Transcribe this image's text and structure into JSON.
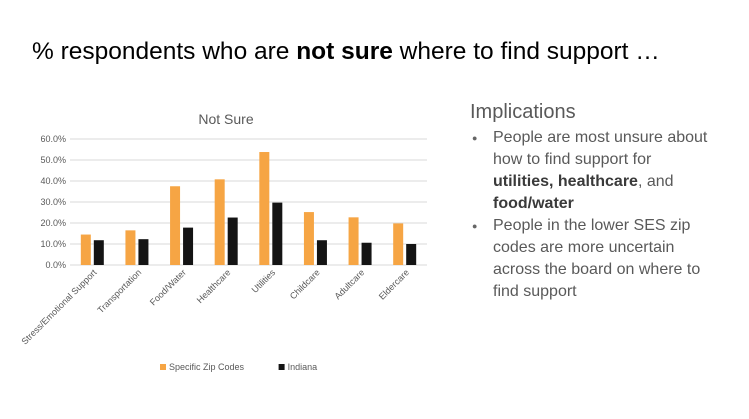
{
  "slide": {
    "title_pre": "% respondents who are ",
    "title_bold": "not sure",
    "title_post": " where to find support …"
  },
  "implications": {
    "heading": "Implications",
    "bullet1_text": "People are most unsure about how to find support for ",
    "bullet1_bold_a": "utilities, healthcare",
    "bullet1_mid": ", and ",
    "bullet1_bold_b": "food/water",
    "bullet2": "People in the lower SES zip codes are more uncertain across the board on where to find support"
  },
  "colors": {
    "series_1": "#F6A544",
    "series_2": "#141414",
    "grid": "#d9d9d9",
    "axis_text": "#595959"
  },
  "chart_data": {
    "type": "bar",
    "title": "Not Sure",
    "xlabel": "",
    "ylabel": "",
    "categories": [
      "Stress/Emotional Support",
      "Transportation",
      "Food/Water",
      "Healthcare",
      "Utilities",
      "Childcare",
      "Adultcare",
      "Eldercare"
    ],
    "series": [
      {
        "name": "Specific Zip Codes",
        "values": [
          14.5,
          16.5,
          37.5,
          40.8,
          53.8,
          25.2,
          22.7,
          19.8
        ]
      },
      {
        "name": "Indiana",
        "values": [
          11.8,
          12.3,
          17.8,
          22.6,
          29.7,
          11.8,
          10.6,
          10.0
        ]
      }
    ],
    "ylim": [
      0,
      60
    ],
    "yticks": [
      "0.0%",
      "10.0%",
      "20.0%",
      "30.0%",
      "40.0%",
      "50.0%",
      "60.0%"
    ],
    "grid": true,
    "legend_position": "bottom"
  }
}
